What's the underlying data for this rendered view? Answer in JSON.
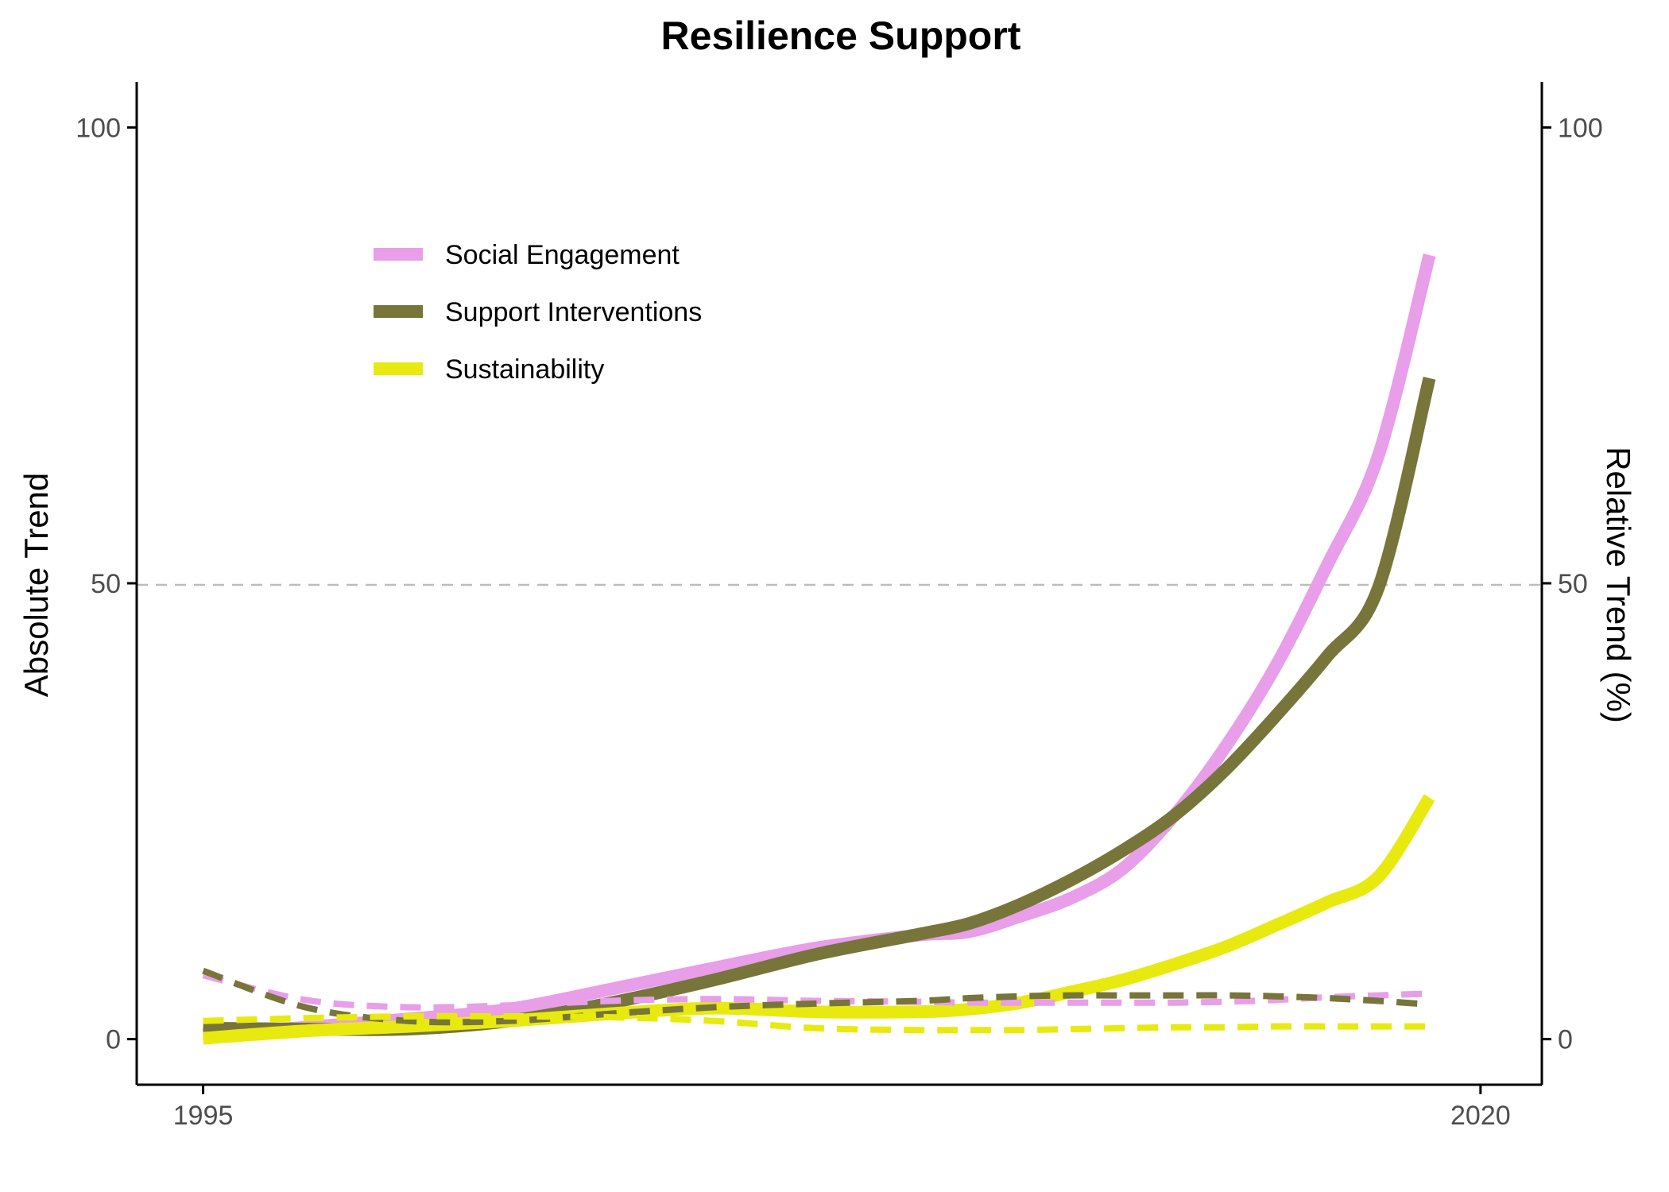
{
  "chart_data": {
    "type": "line",
    "title": "Resilience Support",
    "xlabel": "",
    "ylabel": "Absolute Trend",
    "y2label": "Relative Trend (%)",
    "xlim": [
      1993.7,
      2021.2
    ],
    "ylim": [
      -5,
      105
    ],
    "y2lim": [
      -5,
      105
    ],
    "xticks": [
      "1995",
      "2020"
    ],
    "yticks": [
      "0",
      "50",
      "100"
    ],
    "y2ticks": [
      "0",
      "50",
      "100"
    ],
    "reference_line": {
      "y": 50,
      "style": "dashed",
      "color": "#bdbdbd"
    },
    "legend_position": "top-left",
    "grid": false,
    "x": [
      1995,
      1997,
      1999,
      2001,
      2003,
      2005,
      2007,
      2009,
      2010,
      2011,
      2012,
      2013,
      2014,
      2015,
      2016,
      2017,
      2018,
      2019
    ],
    "series": [
      {
        "name": "Social Engagement",
        "color": "#e89ee8",
        "axis": "left",
        "style": "solid",
        "values": [
          0.5,
          1.3,
          2.2,
          3.3,
          5.5,
          7.8,
          10,
          11.4,
          11.8,
          13.5,
          15.5,
          18.7,
          24.5,
          32,
          41,
          52,
          64,
          86
        ]
      },
      {
        "name": "Support Interventions",
        "color": "#77753a",
        "axis": "left",
        "style": "solid",
        "values": [
          1.2,
          1.1,
          1.1,
          2.0,
          4.0,
          6.5,
          9.3,
          11.5,
          12.7,
          14.8,
          17.5,
          20.7,
          24.5,
          29.5,
          35.5,
          42,
          49.5,
          72.5
        ]
      },
      {
        "name": "Sustainability",
        "color": "#e8ea0f",
        "axis": "left",
        "style": "solid",
        "values": [
          0.1,
          0.9,
          1.4,
          2.0,
          2.8,
          3.4,
          3.0,
          3.0,
          3.3,
          4.0,
          5.2,
          6.5,
          8.2,
          10.1,
          12.5,
          15.0,
          17.8,
          26.5
        ]
      },
      {
        "name": "Social Engagement",
        "color": "#e89ee8",
        "axis": "right",
        "style": "dashed",
        "values": [
          7.0,
          4.3,
          3.5,
          3.7,
          4.2,
          4.4,
          4.2,
          4.1,
          4.0,
          4.0,
          4.0,
          4.0,
          4.0,
          4.1,
          4.3,
          4.6,
          4.8,
          5.0
        ]
      },
      {
        "name": "Support Interventions",
        "color": "#77753a",
        "axis": "right",
        "style": "dashed",
        "values": [
          7.5,
          3.5,
          2.0,
          2.0,
          2.8,
          3.5,
          3.9,
          4.2,
          4.5,
          4.7,
          4.8,
          4.8,
          4.8,
          4.8,
          4.7,
          4.5,
          4.2,
          3.8
        ]
      },
      {
        "name": "Sustainability",
        "color": "#e8ea0f",
        "axis": "right",
        "style": "dashed",
        "values": [
          2.0,
          2.3,
          2.5,
          2.5,
          2.4,
          2.0,
          1.2,
          1.0,
          1.0,
          1.0,
          1.1,
          1.2,
          1.3,
          1.3,
          1.4,
          1.4,
          1.4,
          1.4
        ]
      }
    ],
    "legend": [
      "Social Engagement",
      "Support Interventions",
      "Sustainability"
    ]
  }
}
